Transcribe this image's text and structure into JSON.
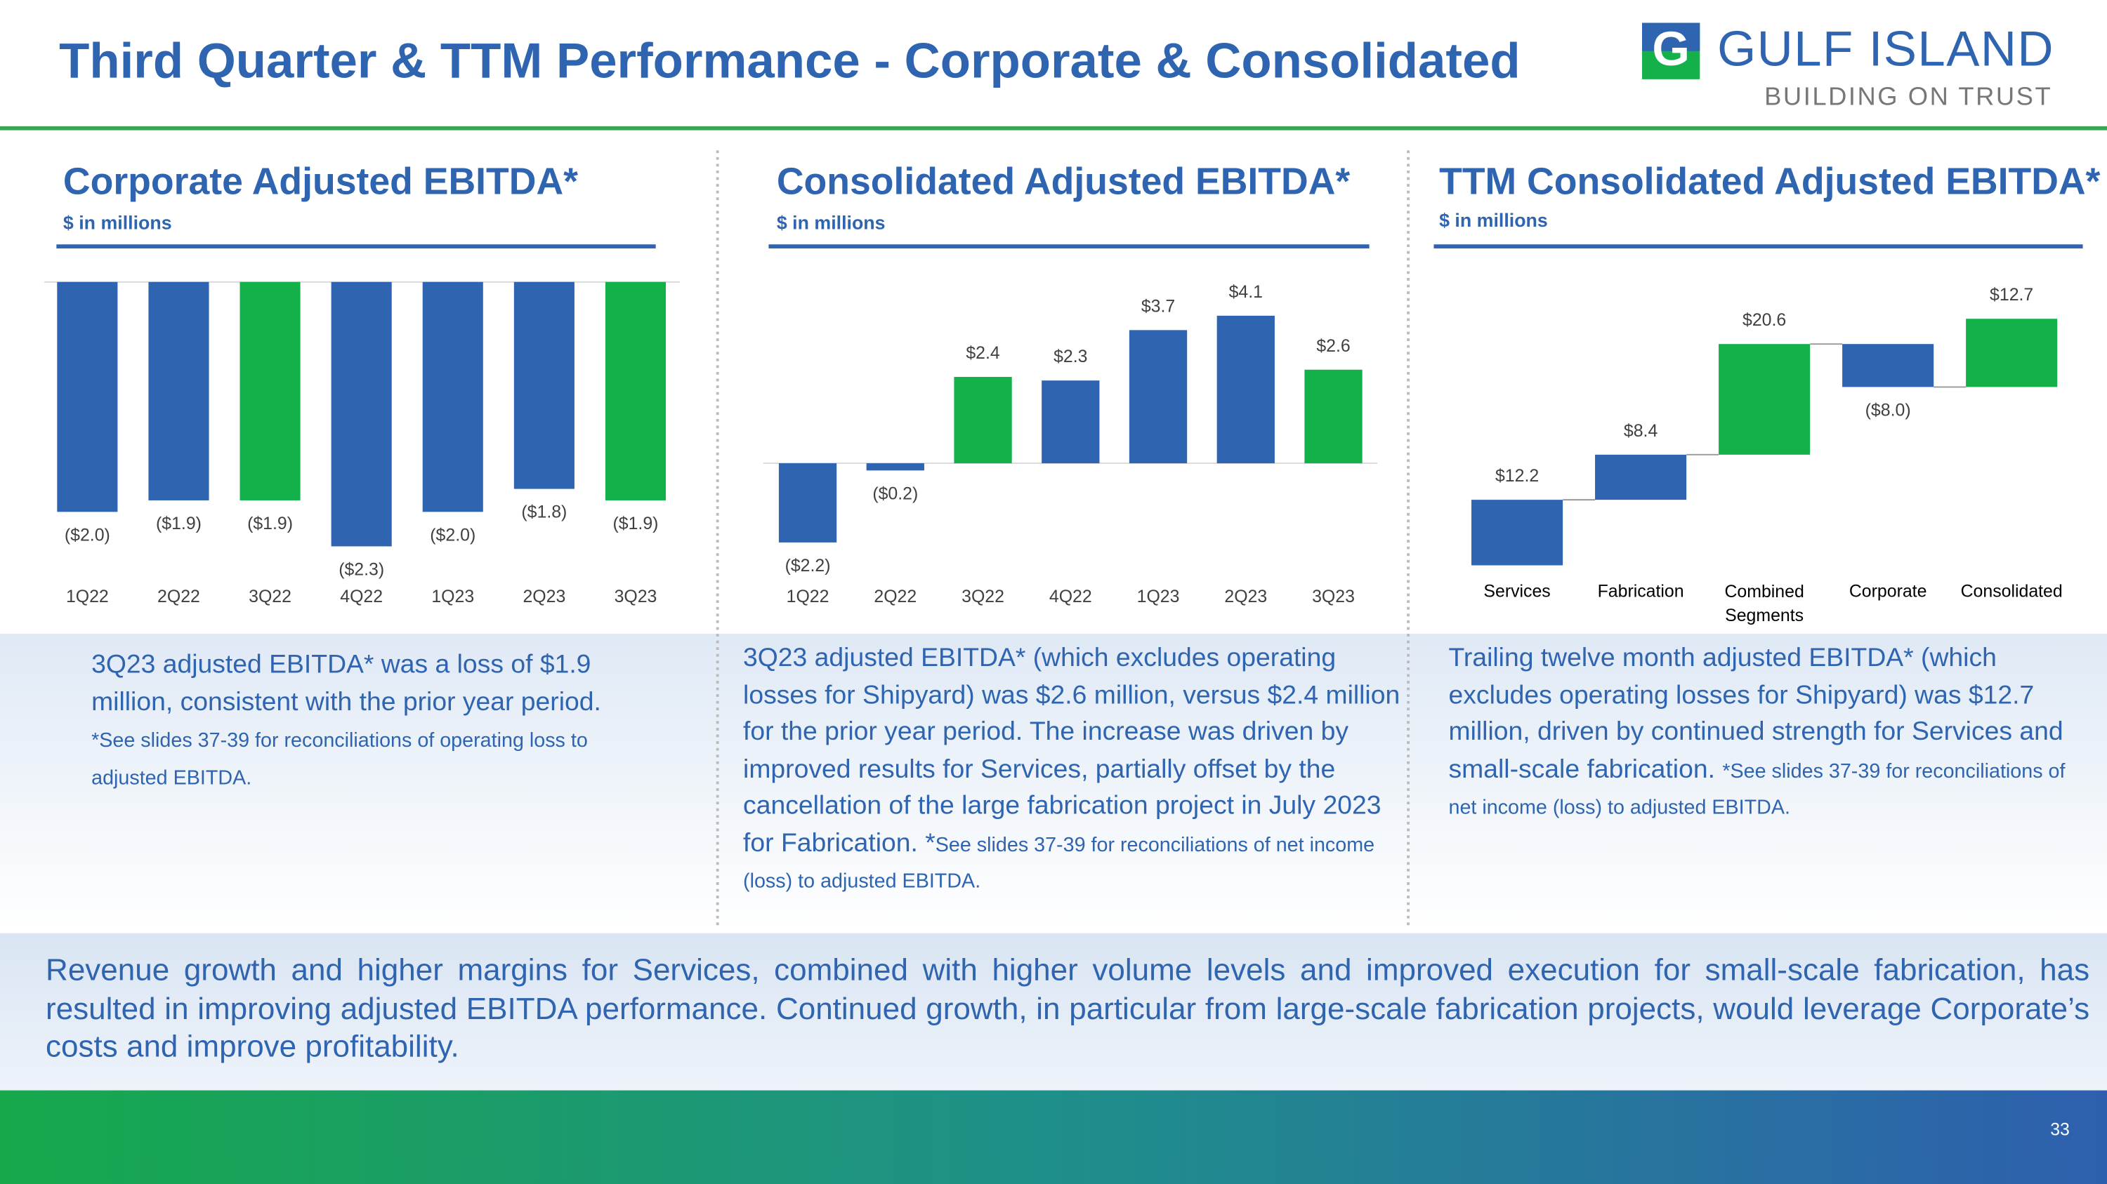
{
  "title": "Third Quarter & TTM Performance - Corporate & Consolidated",
  "logo": {
    "name": "GULF ISLAND",
    "tagline": "BUILDING ON TRUST"
  },
  "chart_data": [
    {
      "type": "bar",
      "title": "Corporate Adjusted EBITDA*",
      "subtitle": "$ in millions",
      "categories": [
        "1Q22",
        "2Q22",
        "3Q22",
        "4Q22",
        "1Q23",
        "2Q23",
        "3Q23"
      ],
      "values": [
        -2.0,
        -1.9,
        -1.9,
        -2.3,
        -2.0,
        -1.8,
        -1.9
      ],
      "value_labels": [
        "($2.0)",
        "($1.9)",
        "($1.9)",
        "($2.3)",
        "($2.0)",
        "($1.8)",
        "($1.9)"
      ],
      "colors": [
        "#2e64b0",
        "#2e64b0",
        "#14b14b",
        "#2e64b0",
        "#2e64b0",
        "#2e64b0",
        "#14b14b"
      ],
      "ylim": [
        -2.5,
        0
      ]
    },
    {
      "type": "bar",
      "title": "Consolidated Adjusted EBITDA*",
      "subtitle": "$ in millions",
      "categories": [
        "1Q22",
        "2Q22",
        "3Q22",
        "4Q22",
        "1Q23",
        "2Q23",
        "3Q23"
      ],
      "values": [
        -2.2,
        -0.2,
        2.4,
        2.3,
        3.7,
        4.1,
        2.6
      ],
      "value_labels": [
        "($2.2)",
        "($0.2)",
        "$2.4",
        "$2.3",
        "$3.7",
        "$4.1",
        "$2.6"
      ],
      "colors": [
        "#2e64b0",
        "#2e64b0",
        "#14b14b",
        "#2e64b0",
        "#2e64b0",
        "#2e64b0",
        "#14b14b"
      ],
      "ylim": [
        -2.5,
        4.5
      ]
    },
    {
      "type": "waterfall",
      "title": "TTM Consolidated Adjusted EBITDA*",
      "subtitle": "$ in millions",
      "categories": [
        "Services",
        "Fabrication",
        "Combined Segments",
        "Corporate",
        "Consolidated"
      ],
      "values": [
        12.2,
        8.4,
        20.6,
        -8.0,
        12.7
      ],
      "value_labels": [
        "$12.2",
        "$8.4",
        "$20.6",
        "($8.0)",
        "$12.7"
      ],
      "colors": [
        "#2e64b0",
        "#2e64b0",
        "#14b14b",
        "#2e64b0",
        "#14b14b"
      ],
      "ylim": [
        0,
        50
      ]
    }
  ],
  "panels": [
    {
      "text": "3Q23 adjusted EBITDA* was a loss of $1.9 million, consistent with the prior year period.",
      "note": "*See slides 37-39 for reconciliations of operating loss to adjusted EBITDA."
    },
    {
      "text": "3Q23 adjusted EBITDA* (which excludes operating losses for Shipyard) was $2.6 million, versus $2.4 million for the prior year period. The increase was driven by improved results for Services, partially offset by the cancellation of the large fabrication project in July 2023 for Fabrication. *",
      "note": "See slides 37-39 for reconciliations of net income (loss) to adjusted EBITDA."
    },
    {
      "text": "Trailing twelve month adjusted EBITDA* (which excludes operating losses for Shipyard) was $12.7 million, driven by continued strength for Services and small-scale fabrication.",
      "note": "*See slides 37-39 for reconciliations of net income (loss) to adjusted EBITDA."
    }
  ],
  "summary": "Revenue growth and higher margins for Services, combined with higher volume levels and improved execution for small-scale fabrication, has resulted in improving adjusted EBITDA performance. Continued growth, in particular from large-scale fabrication projects, would leverage Corporate’s costs and improve profitability.",
  "page_number": "33"
}
